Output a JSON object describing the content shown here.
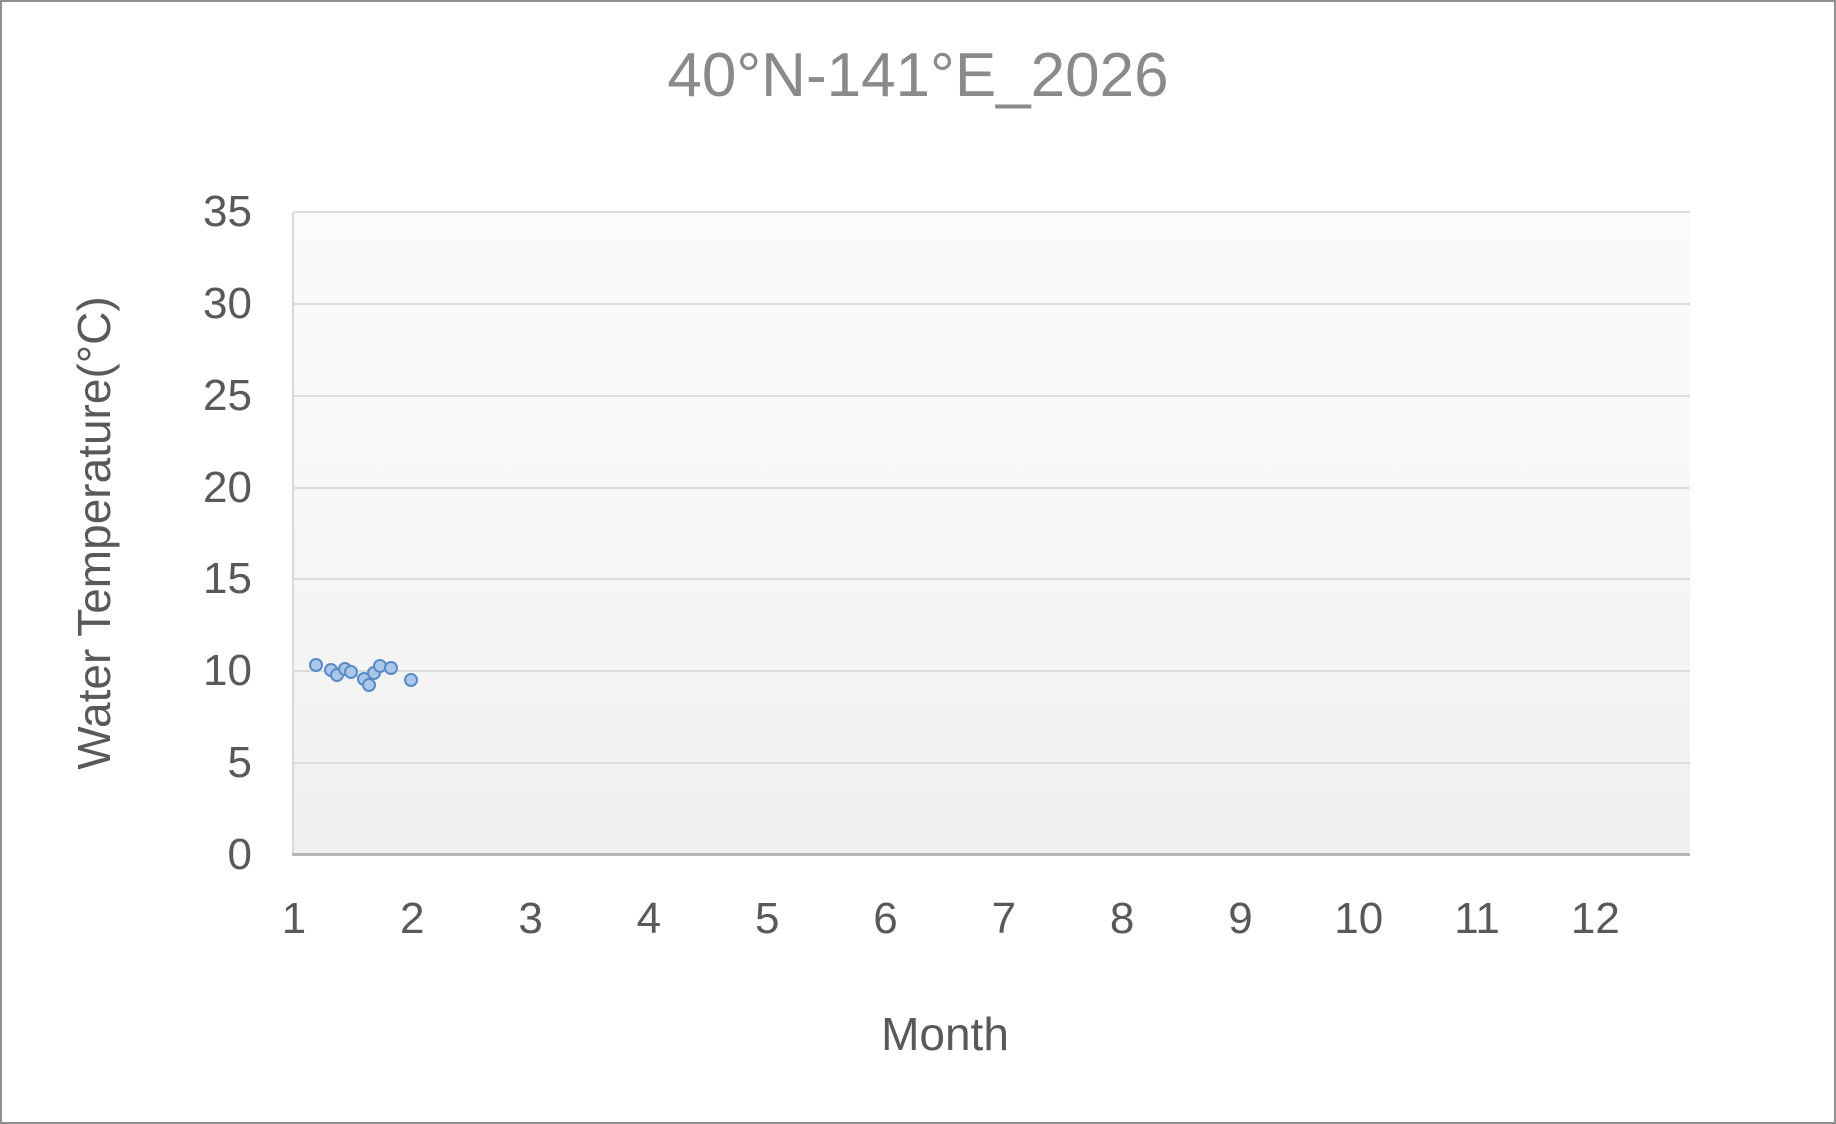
{
  "window": {
    "background": "#ffffff",
    "border_color": "#8f8f8f"
  },
  "chart_data": {
    "type": "scatter",
    "title": "40°N-141°E_2026",
    "xlabel": "Month",
    "ylabel": "Water Temperature(°C)",
    "xlim": [
      1,
      12.8
    ],
    "ylim": [
      0,
      35
    ],
    "xticks": [
      1,
      2,
      3,
      4,
      5,
      6,
      7,
      8,
      9,
      10,
      11,
      12
    ],
    "yticks": [
      0,
      5,
      10,
      15,
      20,
      25,
      30,
      35
    ],
    "grid": "horizontal-only",
    "legend": "none",
    "colors": {
      "title_text": "#8a8a8a",
      "tick_label_text": "#595959",
      "axis_title_text": "#595959",
      "gridline": "#dcdcdc",
      "x_axis_line": "#b6b6b6",
      "y_axis_line": "#d9d9d9",
      "marker_fill": "#a9c8e9",
      "marker_stroke": "#5a8ac6"
    },
    "series": [
      {
        "name": "Water Temperature",
        "points": [
          [
            1.19,
            10.35
          ],
          [
            1.31,
            10.05
          ],
          [
            1.36,
            9.8
          ],
          [
            1.43,
            10.1
          ],
          [
            1.48,
            9.95
          ],
          [
            1.59,
            9.6
          ],
          [
            1.63,
            9.25
          ],
          [
            1.68,
            9.9
          ],
          [
            1.73,
            10.3
          ],
          [
            1.82,
            10.2
          ],
          [
            1.99,
            9.55
          ]
        ]
      }
    ]
  }
}
